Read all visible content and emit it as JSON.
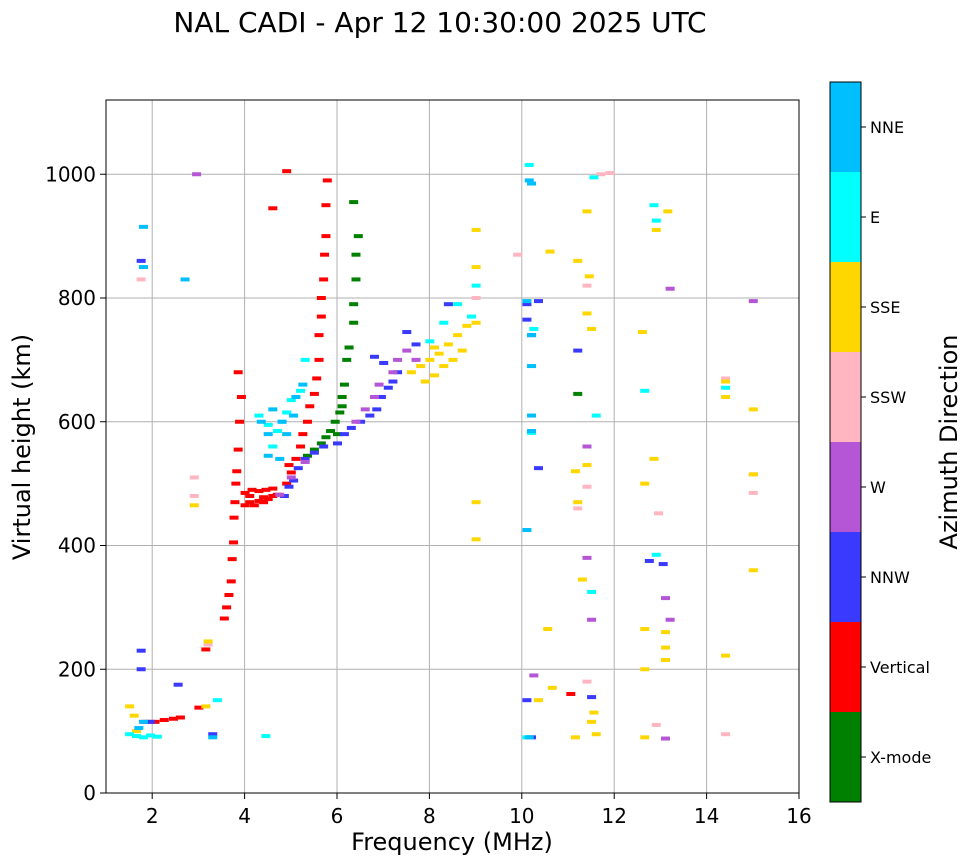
{
  "chart_data": {
    "type": "scatter",
    "title": "NAL CADI - Apr 12 10:30:00 2025 UTC",
    "xlabel": "Frequency (MHz)",
    "ylabel": "Virtual height (km)",
    "xlim": [
      1,
      16
    ],
    "ylim": [
      0,
      1120
    ],
    "xticks": [
      2,
      4,
      6,
      8,
      10,
      12,
      14,
      16
    ],
    "yticks": [
      0,
      200,
      400,
      600,
      800,
      1000
    ],
    "grid": true,
    "colorbar": {
      "label": "Azimuth Direction",
      "categories": [
        {
          "name": "X-mode",
          "color": "#008000"
        },
        {
          "name": "Vertical",
          "color": "#ff0000"
        },
        {
          "name": "NNW",
          "color": "#3a3aff"
        },
        {
          "name": "W",
          "color": "#b556d6"
        },
        {
          "name": "SSW",
          "color": "#ffb6c1"
        },
        {
          "name": "SSE",
          "color": "#ffd700"
        },
        {
          "name": "E",
          "color": "#00ffff"
        },
        {
          "name": "NNE",
          "color": "#00bfff"
        }
      ]
    },
    "series": [
      {
        "name": "Vertical",
        "points": [
          [
            1.85,
            115
          ],
          [
            2.05,
            115
          ],
          [
            2.25,
            118
          ],
          [
            2.45,
            120
          ],
          [
            2.6,
            122
          ],
          [
            3.0,
            138
          ],
          [
            3.15,
            232
          ],
          [
            3.55,
            282
          ],
          [
            3.6,
            300
          ],
          [
            3.65,
            320
          ],
          [
            3.7,
            342
          ],
          [
            3.72,
            378
          ],
          [
            3.75,
            405
          ],
          [
            3.76,
            445
          ],
          [
            3.78,
            470
          ],
          [
            3.8,
            500
          ],
          [
            3.82,
            520
          ],
          [
            3.85,
            555
          ],
          [
            3.88,
            600
          ],
          [
            3.92,
            640
          ],
          [
            4.0,
            465
          ],
          [
            4.1,
            470
          ],
          [
            4.2,
            465
          ],
          [
            4.3,
            472
          ],
          [
            4.4,
            470
          ],
          [
            4.5,
            475
          ],
          [
            4.6,
            480
          ],
          [
            4.7,
            482
          ],
          [
            4.0,
            485
          ],
          [
            4.15,
            490
          ],
          [
            4.3,
            488
          ],
          [
            4.45,
            490
          ],
          [
            4.6,
            492
          ],
          [
            4.1,
            480
          ],
          [
            4.4,
            478
          ],
          [
            4.9,
            500
          ],
          [
            4.95,
            530
          ],
          [
            5.0,
            518
          ],
          [
            5.1,
            540
          ],
          [
            5.2,
            560
          ],
          [
            5.25,
            580
          ],
          [
            5.35,
            600
          ],
          [
            5.4,
            625
          ],
          [
            5.5,
            645
          ],
          [
            5.55,
            670
          ],
          [
            5.6,
            700
          ],
          [
            5.6,
            740
          ],
          [
            5.65,
            770
          ],
          [
            5.65,
            800
          ],
          [
            5.7,
            830
          ],
          [
            5.72,
            870
          ],
          [
            5.75,
            900
          ],
          [
            5.75,
            950
          ],
          [
            5.78,
            990
          ],
          [
            4.9,
            1005
          ],
          [
            4.6,
            945
          ],
          [
            3.85,
            680
          ],
          [
            11.05,
            160
          ]
        ]
      },
      {
        "name": "X-mode",
        "points": [
          [
            5.35,
            545
          ],
          [
            5.5,
            555
          ],
          [
            5.65,
            565
          ],
          [
            5.75,
            575
          ],
          [
            5.85,
            585
          ],
          [
            5.95,
            600
          ],
          [
            6.05,
            615
          ],
          [
            6.1,
            640
          ],
          [
            6.15,
            660
          ],
          [
            6.2,
            700
          ],
          [
            6.25,
            720
          ],
          [
            6.35,
            760
          ],
          [
            6.35,
            790
          ],
          [
            6.4,
            830
          ],
          [
            6.4,
            870
          ],
          [
            6.45,
            900
          ],
          [
            6.35,
            955
          ],
          [
            6.0,
            580
          ],
          [
            6.1,
            625
          ],
          [
            11.2,
            645
          ]
        ]
      },
      {
        "name": "NNW",
        "points": [
          [
            1.75,
            860
          ],
          [
            1.75,
            230
          ],
          [
            1.75,
            200
          ],
          [
            1.95,
            115
          ],
          [
            2.55,
            175
          ],
          [
            3.3,
            95
          ],
          [
            4.85,
            480
          ],
          [
            4.95,
            495
          ],
          [
            5.05,
            505
          ],
          [
            5.15,
            525
          ],
          [
            5.3,
            540
          ],
          [
            5.5,
            550
          ],
          [
            5.7,
            560
          ],
          [
            6.0,
            565
          ],
          [
            6.15,
            580
          ],
          [
            6.3,
            590
          ],
          [
            6.5,
            600
          ],
          [
            6.7,
            610
          ],
          [
            6.85,
            620
          ],
          [
            6.95,
            640
          ],
          [
            7.1,
            655
          ],
          [
            7.2,
            665
          ],
          [
            7.3,
            680
          ],
          [
            7.0,
            695
          ],
          [
            6.8,
            705
          ],
          [
            7.5,
            745
          ],
          [
            7.7,
            725
          ],
          [
            8.4,
            790
          ],
          [
            10.1,
            790
          ],
          [
            10.35,
            795
          ],
          [
            10.2,
            740
          ],
          [
            10.35,
            525
          ],
          [
            10.1,
            150
          ],
          [
            10.2,
            90
          ],
          [
            11.5,
            155
          ],
          [
            11.2,
            715
          ],
          [
            12.75,
            375
          ],
          [
            13.05,
            370
          ],
          [
            10.1,
            765
          ]
        ]
      },
      {
        "name": "W",
        "points": [
          [
            2.95,
            1000
          ],
          [
            4.75,
            482
          ],
          [
            5.0,
            510
          ],
          [
            5.3,
            535
          ],
          [
            6.4,
            600
          ],
          [
            6.6,
            620
          ],
          [
            6.8,
            640
          ],
          [
            6.9,
            660
          ],
          [
            7.2,
            680
          ],
          [
            7.3,
            700
          ],
          [
            7.5,
            715
          ],
          [
            7.7,
            700
          ],
          [
            10.25,
            190
          ],
          [
            11.4,
            560
          ],
          [
            13.2,
            815
          ],
          [
            15.0,
            795
          ],
          [
            13.1,
            315
          ],
          [
            13.2,
            280
          ],
          [
            13.1,
            88
          ],
          [
            11.5,
            280
          ],
          [
            11.4,
            380
          ]
        ]
      },
      {
        "name": "SSW",
        "points": [
          [
            1.75,
            830
          ],
          [
            2.9,
            510
          ],
          [
            2.9,
            480
          ],
          [
            3.2,
            240
          ],
          [
            9.0,
            800
          ],
          [
            9.9,
            870
          ],
          [
            11.7,
            1000
          ],
          [
            11.9,
            1002
          ],
          [
            12.95,
            452
          ],
          [
            12.9,
            110
          ],
          [
            14.4,
            95
          ],
          [
            15.0,
            485
          ],
          [
            15.0,
            515
          ],
          [
            14.4,
            670
          ],
          [
            11.4,
            180
          ],
          [
            11.2,
            460
          ],
          [
            11.4,
            495
          ],
          [
            11.4,
            820
          ]
        ]
      },
      {
        "name": "SSE",
        "points": [
          [
            1.5,
            140
          ],
          [
            1.6,
            125
          ],
          [
            1.65,
            100
          ],
          [
            2.9,
            465
          ],
          [
            3.15,
            140
          ],
          [
            3.2,
            245
          ],
          [
            7.6,
            680
          ],
          [
            7.8,
            690
          ],
          [
            8.0,
            700
          ],
          [
            8.2,
            710
          ],
          [
            8.4,
            725
          ],
          [
            8.6,
            740
          ],
          [
            8.8,
            755
          ],
          [
            9.0,
            760
          ],
          [
            7.9,
            665
          ],
          [
            8.1,
            675
          ],
          [
            8.3,
            690
          ],
          [
            8.5,
            700
          ],
          [
            8.7,
            715
          ],
          [
            8.1,
            720
          ],
          [
            9.0,
            910
          ],
          [
            9.0,
            850
          ],
          [
            9.0,
            470
          ],
          [
            9.0,
            410
          ],
          [
            10.6,
            875
          ],
          [
            11.2,
            860
          ],
          [
            11.4,
            775
          ],
          [
            11.5,
            750
          ],
          [
            11.4,
            940
          ],
          [
            11.45,
            835
          ],
          [
            11.15,
            520
          ],
          [
            11.4,
            530
          ],
          [
            11.2,
            470
          ],
          [
            10.55,
            265
          ],
          [
            10.65,
            170
          ],
          [
            10.35,
            150
          ],
          [
            11.3,
            345
          ],
          [
            11.55,
            130
          ],
          [
            11.5,
            115
          ],
          [
            11.6,
            95
          ],
          [
            11.15,
            90
          ],
          [
            12.6,
            745
          ],
          [
            12.65,
            500
          ],
          [
            12.85,
            540
          ],
          [
            12.9,
            910
          ],
          [
            13.15,
            940
          ],
          [
            12.65,
            265
          ],
          [
            12.65,
            200
          ],
          [
            13.1,
            260
          ],
          [
            13.1,
            235
          ],
          [
            13.1,
            215
          ],
          [
            12.65,
            90
          ],
          [
            14.4,
            640
          ],
          [
            14.4,
            222
          ],
          [
            14.4,
            665
          ],
          [
            15.0,
            620
          ],
          [
            15.0,
            515
          ],
          [
            15.0,
            360
          ]
        ]
      },
      {
        "name": "E",
        "points": [
          [
            1.5,
            95
          ],
          [
            1.65,
            92
          ],
          [
            1.8,
            90
          ],
          [
            1.95,
            93
          ],
          [
            2.1,
            91
          ],
          [
            3.4,
            150
          ],
          [
            4.45,
            92
          ],
          [
            4.5,
            595
          ],
          [
            4.7,
            585
          ],
          [
            4.8,
            600
          ],
          [
            4.9,
            615
          ],
          [
            5.0,
            635
          ],
          [
            4.3,
            610
          ],
          [
            4.6,
            560
          ],
          [
            5.2,
            650
          ],
          [
            5.3,
            700
          ],
          [
            8.0,
            730
          ],
          [
            8.3,
            760
          ],
          [
            8.6,
            790
          ],
          [
            8.9,
            770
          ],
          [
            9.0,
            820
          ],
          [
            10.2,
            582
          ],
          [
            10.1,
            90
          ],
          [
            11.5,
            325
          ],
          [
            11.6,
            610
          ],
          [
            12.85,
            950
          ],
          [
            12.9,
            925
          ],
          [
            12.9,
            385
          ],
          [
            12.65,
            650
          ],
          [
            14.4,
            655
          ],
          [
            10.25,
            750
          ],
          [
            10.15,
            1015
          ],
          [
            11.55,
            995
          ]
        ]
      },
      {
        "name": "NNE",
        "points": [
          [
            1.8,
            915
          ],
          [
            1.8,
            850
          ],
          [
            2.7,
            830
          ],
          [
            1.8,
            115
          ],
          [
            1.7,
            105
          ],
          [
            3.3,
            90
          ],
          [
            4.35,
            600
          ],
          [
            4.5,
            580
          ],
          [
            4.6,
            620
          ],
          [
            4.8,
            600
          ],
          [
            4.9,
            580
          ],
          [
            5.05,
            610
          ],
          [
            5.1,
            640
          ],
          [
            5.25,
            660
          ],
          [
            4.5,
            545
          ],
          [
            4.75,
            540
          ],
          [
            10.1,
            425
          ],
          [
            10.15,
            990
          ],
          [
            10.2,
            985
          ],
          [
            10.1,
            795
          ],
          [
            10.2,
            740
          ],
          [
            10.2,
            690
          ],
          [
            10.2,
            610
          ],
          [
            10.2,
            585
          ],
          [
            10.15,
            90
          ]
        ]
      }
    ]
  }
}
